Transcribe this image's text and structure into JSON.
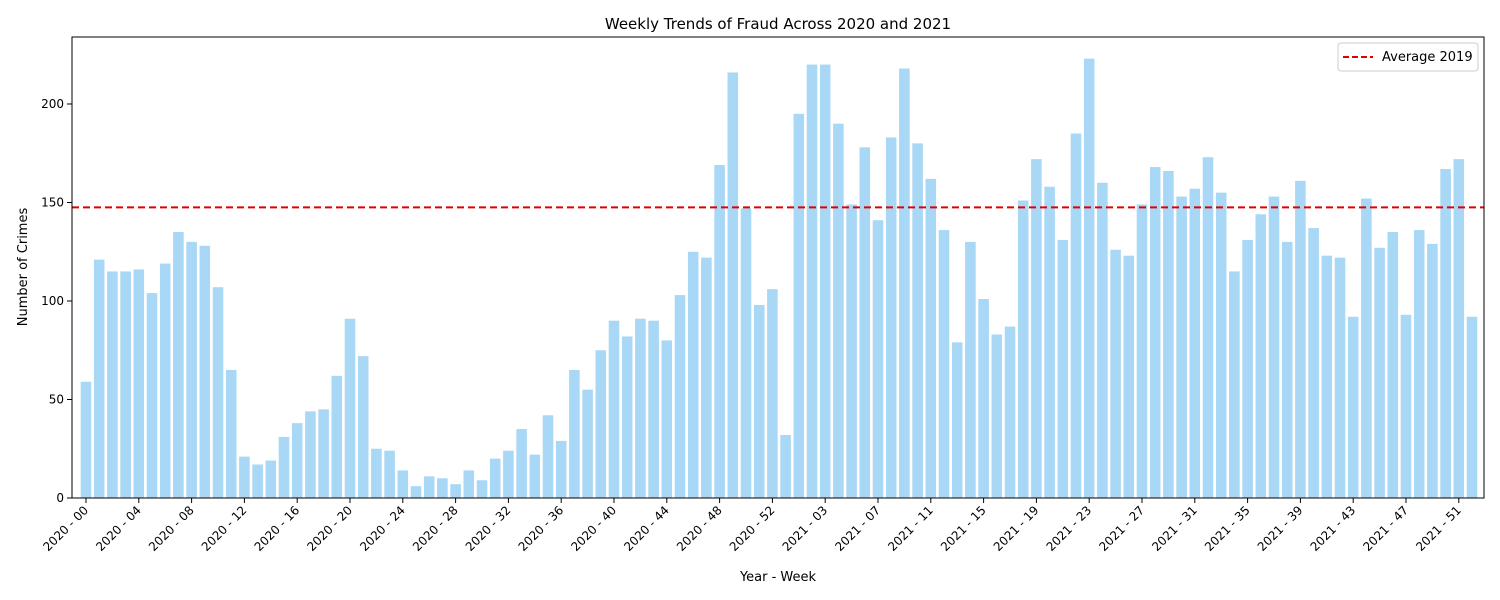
{
  "chart_data": {
    "type": "bar",
    "title": "Weekly Trends of Fraud Across 2020 and 2021",
    "xlabel": "Year - Week",
    "ylabel": "Number of Crimes",
    "ylim": [
      0,
      234
    ],
    "yticks": [
      0,
      50,
      100,
      150,
      200
    ],
    "grid": false,
    "legend_position": "top-right",
    "bar_color": "#a8d8f5",
    "categories": [
      "2020 - 00",
      "2020 - 01",
      "2020 - 02",
      "2020 - 03",
      "2020 - 04",
      "2020 - 05",
      "2020 - 06",
      "2020 - 07",
      "2020 - 08",
      "2020 - 09",
      "2020 - 10",
      "2020 - 11",
      "2020 - 12",
      "2020 - 13",
      "2020 - 14",
      "2020 - 15",
      "2020 - 16",
      "2020 - 17",
      "2020 - 18",
      "2020 - 19",
      "2020 - 20",
      "2020 - 21",
      "2020 - 22",
      "2020 - 23",
      "2020 - 24",
      "2020 - 25",
      "2020 - 26",
      "2020 - 27",
      "2020 - 28",
      "2020 - 29",
      "2020 - 30",
      "2020 - 31",
      "2020 - 32",
      "2020 - 33",
      "2020 - 34",
      "2020 - 35",
      "2020 - 36",
      "2020 - 37",
      "2020 - 38",
      "2020 - 39",
      "2020 - 40",
      "2020 - 41",
      "2020 - 42",
      "2020 - 43",
      "2020 - 44",
      "2020 - 45",
      "2020 - 46",
      "2020 - 47",
      "2020 - 48",
      "2020 - 49",
      "2020 - 50",
      "2020 - 51",
      "2020 - 52",
      "2020 - 53",
      "2021 - 01",
      "2021 - 02",
      "2021 - 03",
      "2021 - 04",
      "2021 - 05",
      "2021 - 06",
      "2021 - 07",
      "2021 - 08",
      "2021 - 09",
      "2021 - 10",
      "2021 - 11",
      "2021 - 12",
      "2021 - 13",
      "2021 - 14",
      "2021 - 15",
      "2021 - 16",
      "2021 - 17",
      "2021 - 18",
      "2021 - 19",
      "2021 - 20",
      "2021 - 21",
      "2021 - 22",
      "2021 - 23",
      "2021 - 24",
      "2021 - 25",
      "2021 - 26",
      "2021 - 27",
      "2021 - 28",
      "2021 - 29",
      "2021 - 30",
      "2021 - 31",
      "2021 - 32",
      "2021 - 33",
      "2021 - 34",
      "2021 - 35",
      "2021 - 36",
      "2021 - 37",
      "2021 - 38",
      "2021 - 39",
      "2021 - 40",
      "2021 - 41",
      "2021 - 42",
      "2021 - 43",
      "2021 - 44",
      "2021 - 45",
      "2021 - 46",
      "2021 - 47",
      "2021 - 48",
      "2021 - 49",
      "2021 - 50",
      "2021 - 51",
      "2021 - 52"
    ],
    "values": [
      59,
      121,
      115,
      115,
      116,
      104,
      119,
      135,
      130,
      128,
      107,
      65,
      21,
      17,
      19,
      31,
      38,
      44,
      45,
      62,
      91,
      72,
      25,
      24,
      14,
      6,
      11,
      10,
      7,
      14,
      9,
      20,
      24,
      35,
      22,
      42,
      29,
      65,
      55,
      75,
      90,
      82,
      91,
      90,
      80,
      103,
      125,
      122,
      169,
      216,
      147,
      98,
      106,
      32,
      195,
      220,
      220,
      190,
      149,
      178,
      141,
      183,
      218,
      180,
      162,
      136,
      79,
      130,
      101,
      83,
      87,
      151,
      172,
      158,
      131,
      185,
      223,
      160,
      126,
      123,
      149,
      168,
      166,
      153,
      157,
      173,
      155,
      115,
      131,
      144,
      153,
      130,
      161,
      137,
      123,
      122,
      92,
      152,
      127,
      135,
      93,
      136,
      129,
      167,
      172,
      92
    ],
    "tick_labels": [
      "2020 - 00",
      "2020 - 04",
      "2020 - 08",
      "2020 - 12",
      "2020 - 16",
      "2020 - 20",
      "2020 - 24",
      "2020 - 28",
      "2020 - 32",
      "2020 - 36",
      "2020 - 40",
      "2020 - 44",
      "2020 - 48",
      "2020 - 52",
      "2021 - 03",
      "2021 - 07",
      "2021 - 11",
      "2021 - 15",
      "2021 - 19",
      "2021 - 23",
      "2021 - 27",
      "2021 - 31",
      "2021 - 35",
      "2021 - 39",
      "2021 - 43",
      "2021 - 47",
      "2021 - 51"
    ],
    "reference_line": {
      "name": "Average 2019",
      "value": 147.5,
      "color": "#e00000",
      "style": "dashed"
    }
  }
}
